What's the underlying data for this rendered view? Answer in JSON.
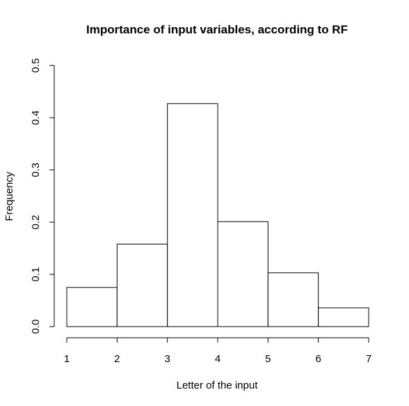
{
  "chart_data": {
    "type": "bar",
    "title": "Importance of input variables, according to RF",
    "xlabel": "Letter of the input",
    "ylabel": "Frequency",
    "xlim": [
      1,
      7
    ],
    "ylim": [
      0,
      0.5
    ],
    "bins": [
      {
        "start": 1,
        "end": 2,
        "value": 0.075
      },
      {
        "start": 2,
        "end": 3,
        "value": 0.158
      },
      {
        "start": 3,
        "end": 4,
        "value": 0.427
      },
      {
        "start": 4,
        "end": 5,
        "value": 0.201
      },
      {
        "start": 5,
        "end": 6,
        "value": 0.103
      },
      {
        "start": 6,
        "end": 7,
        "value": 0.036
      }
    ],
    "x_ticks": [
      "1",
      "2",
      "3",
      "4",
      "5",
      "6",
      "7"
    ],
    "y_ticks": [
      "0.0",
      "0.1",
      "0.2",
      "0.3",
      "0.4",
      "0.5"
    ],
    "grid": false,
    "legend": "none"
  }
}
